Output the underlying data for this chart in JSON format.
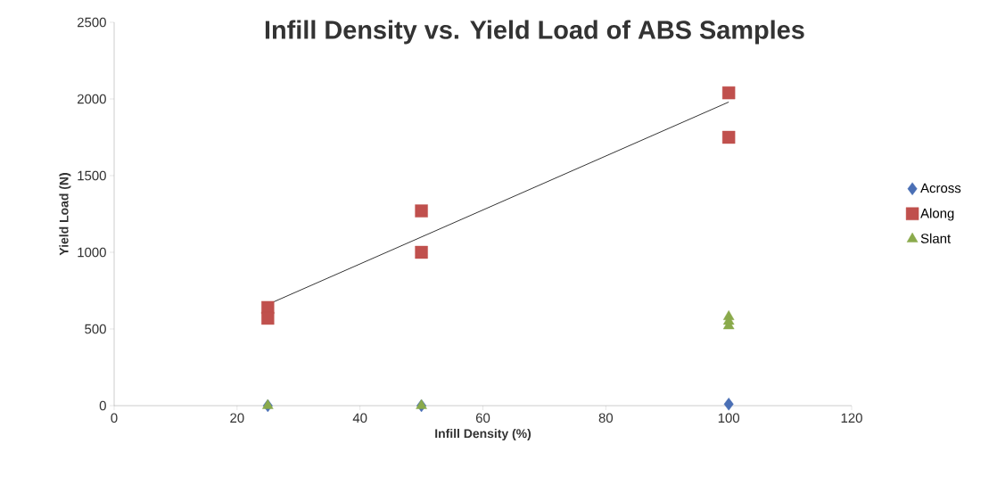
{
  "chart_data": {
    "type": "scatter",
    "title": "Infill Density vs. Yield Load of ABS Samples",
    "xlabel": "Infill Density (%)",
    "ylabel": "Yield Load (N)",
    "xlim": [
      0,
      120
    ],
    "xticks": [
      0,
      20,
      40,
      60,
      80,
      100,
      120
    ],
    "ylim": [
      0,
      2500
    ],
    "yticks": [
      0,
      500,
      1000,
      1500,
      2000,
      2500
    ],
    "grid": false,
    "legend": "right",
    "series": [
      {
        "name": "Across",
        "color": "#4a6fb5",
        "marker": "diamond",
        "x": [
          25,
          50,
          100
        ],
        "values": [
          0,
          0,
          10
        ]
      },
      {
        "name": "Along",
        "color": "#c0504d",
        "marker": "square",
        "x": [
          25,
          25,
          50,
          50,
          100,
          100
        ],
        "values": [
          640,
          570,
          1270,
          1000,
          2040,
          1750
        ]
      },
      {
        "name": "Slant",
        "color": "#8aaa4b",
        "marker": "triangle",
        "x": [
          25,
          50,
          100,
          100,
          100
        ],
        "values": [
          0,
          0,
          580,
          550,
          520
        ]
      },
      {
        "type": "line",
        "color": "#000000",
        "marker": "none",
        "x": [
          25,
          100
        ],
        "values": [
          660,
          1980
        ]
      }
    ]
  }
}
